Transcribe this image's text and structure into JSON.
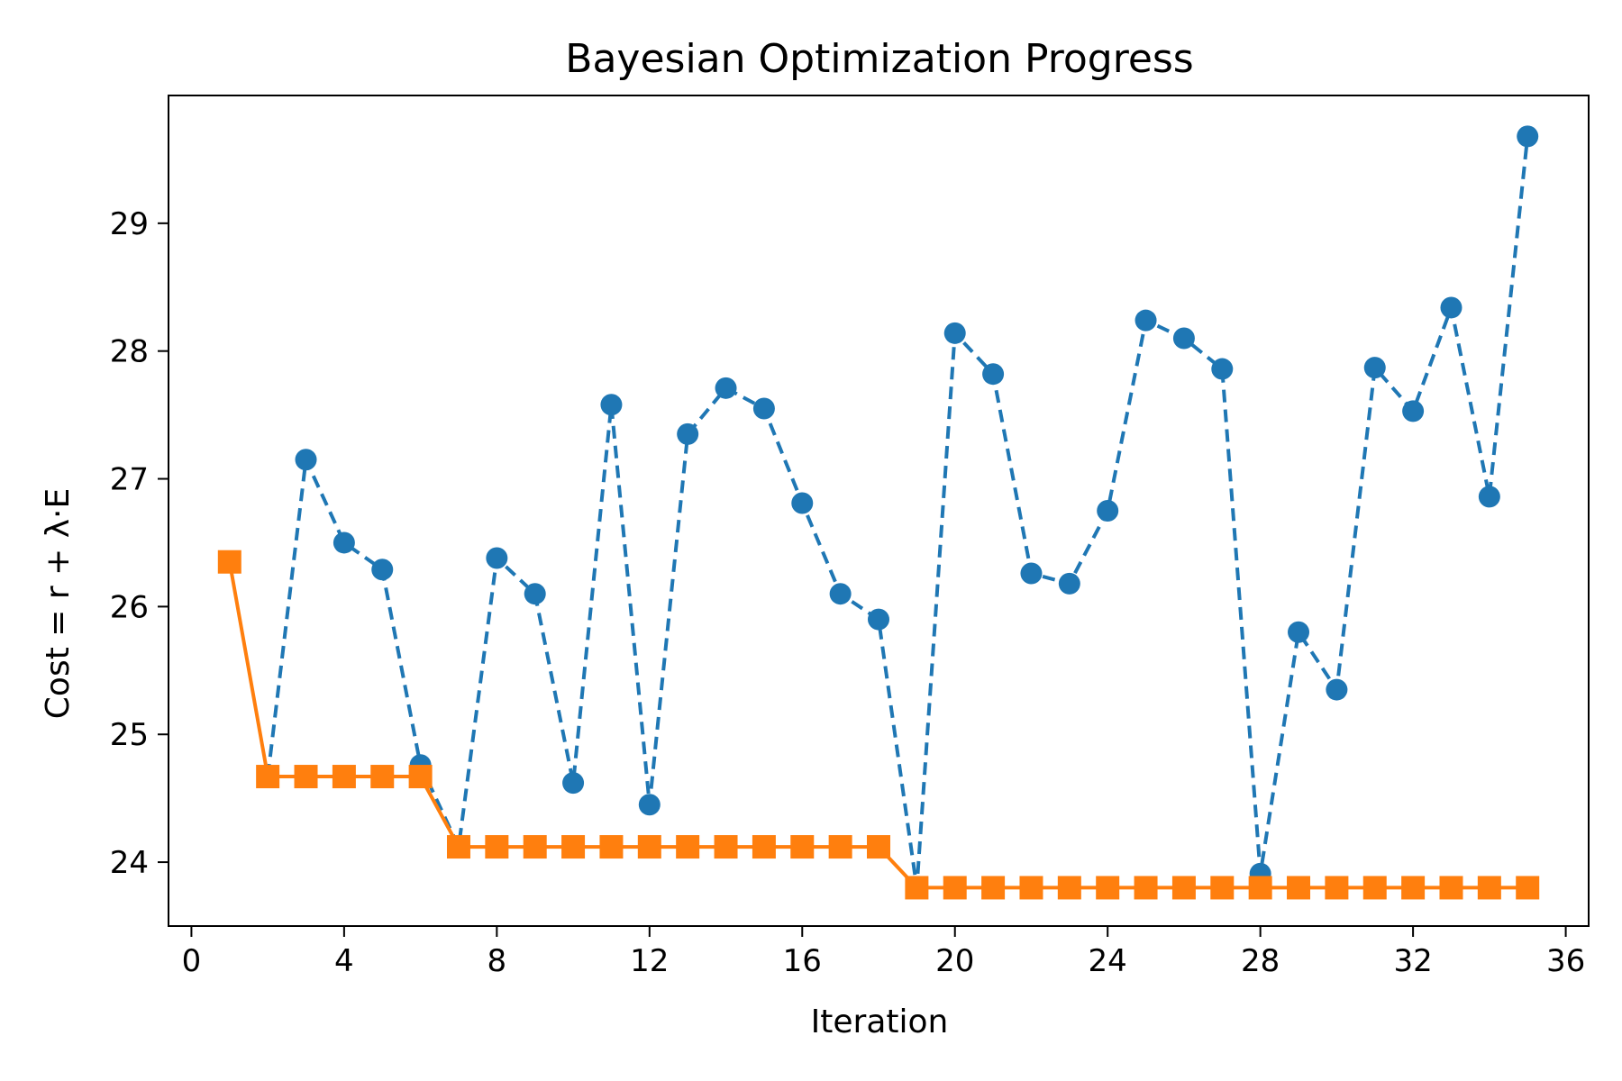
{
  "chart_data": {
    "type": "line",
    "title": "Bayesian Optimization Progress",
    "xlabel": "Iteration",
    "ylabel": "Cost = r + λ·E",
    "xlim": [
      -0.6,
      36.6
    ],
    "ylim": [
      23.5,
      30.0
    ],
    "xticks": [
      0,
      4,
      8,
      12,
      16,
      20,
      24,
      28,
      32,
      36
    ],
    "yticks": [
      24,
      25,
      26,
      27,
      28,
      29
    ],
    "grid": false,
    "series": [
      {
        "color": "#1f77b4",
        "line_style": "dashed",
        "marker": "circle",
        "x": [
          2,
          3,
          4,
          5,
          6,
          7,
          8,
          9,
          10,
          11,
          12,
          13,
          14,
          15,
          16,
          17,
          18,
          19,
          20,
          21,
          22,
          23,
          24,
          25,
          26,
          27,
          28,
          29,
          30,
          31,
          32,
          33,
          34,
          35
        ],
        "y": [
          24.67,
          27.15,
          26.5,
          26.29,
          24.76,
          24.12,
          26.38,
          26.1,
          24.62,
          27.58,
          24.45,
          27.35,
          27.71,
          27.55,
          26.81,
          26.1,
          25.9,
          23.8,
          28.14,
          27.82,
          26.26,
          26.18,
          26.75,
          28.24,
          28.1,
          27.86,
          23.91,
          25.8,
          25.35,
          27.87,
          27.53,
          28.34,
          26.86,
          29.68
        ]
      },
      {
        "color": "#ff7f0e",
        "line_style": "solid",
        "marker": "square",
        "x": [
          1,
          2,
          3,
          4,
          5,
          6,
          7,
          8,
          9,
          10,
          11,
          12,
          13,
          14,
          15,
          16,
          17,
          18,
          19,
          20,
          21,
          22,
          23,
          24,
          25,
          26,
          27,
          28,
          29,
          30,
          31,
          32,
          33,
          34,
          35
        ],
        "y": [
          26.35,
          24.67,
          24.67,
          24.67,
          24.67,
          24.67,
          24.12,
          24.12,
          24.12,
          24.12,
          24.12,
          24.12,
          24.12,
          24.12,
          24.12,
          24.12,
          24.12,
          24.12,
          23.8,
          23.8,
          23.8,
          23.8,
          23.8,
          23.8,
          23.8,
          23.8,
          23.8,
          23.8,
          23.8,
          23.8,
          23.8,
          23.8,
          23.8,
          23.8,
          23.8
        ]
      }
    ]
  }
}
